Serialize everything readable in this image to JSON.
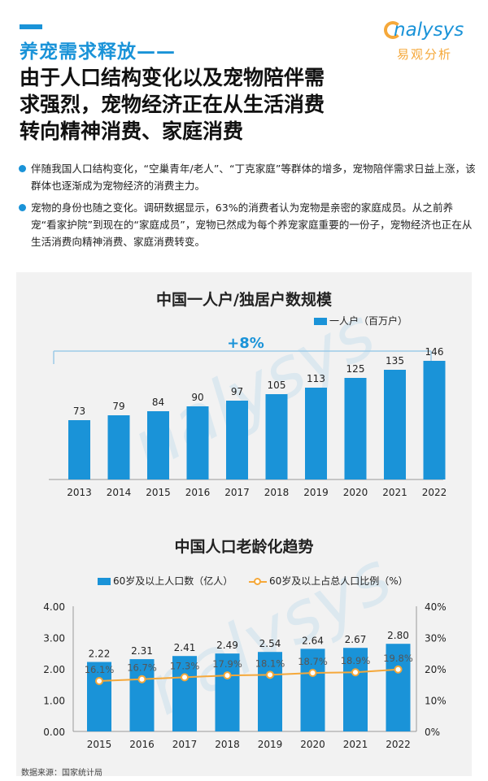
{
  "header": {
    "section_label": "养宠需求释放——",
    "headline_lines": [
      "由于人口结构变化以及宠物陪伴需",
      "求强烈，宠物经济正在从生活消费",
      "转向精神消费、家庭消费"
    ]
  },
  "logo": {
    "word": "nalysys",
    "cn": "易观分析",
    "brand_color": "#1a93d8",
    "accent_color": "#f5a83a"
  },
  "bullets": [
    "伴随我国人口结构变化，“空巢青年/老人”、“丁克家庭”等群体的增多，宠物陪伴需求日益上涨，该群体也逐渐成为宠物经济的消费主力。",
    "宠物的身份也随之变化。调研数据显示，63%的消费者认为宠物是亲密的家庭成员。从之前养宠“看家护院”到现在的“家庭成员”，宠物已然成为每个养宠家庭重要的一份子，宠物经济也正在从生活消费向精神消费、家庭消费转变。"
  ],
  "chart_data": [
    {
      "type": "bar",
      "title": "中国一人户/独居户数规模",
      "categories": [
        "2013",
        "2014",
        "2015",
        "2016",
        "2017",
        "2018",
        "2019",
        "2020",
        "2021",
        "2022"
      ],
      "series": [
        {
          "name": "一人户（百万户）",
          "values": [
            73,
            79,
            84,
            90,
            97,
            105,
            113,
            125,
            135,
            146
          ]
        }
      ],
      "annotation": "+8%",
      "legend_position": "top-right",
      "grid": false,
      "ylim": [
        0,
        160
      ]
    },
    {
      "type": "bar",
      "title": "中国人口老龄化趋势",
      "categories": [
        "2015",
        "2016",
        "2017",
        "2018",
        "2019",
        "2020",
        "2021",
        "2022"
      ],
      "series": [
        {
          "name": "60岁及以上人口数（亿人）",
          "type": "bar",
          "axis": "left",
          "values": [
            2.22,
            2.31,
            2.41,
            2.49,
            2.54,
            2.64,
            2.67,
            2.8
          ]
        },
        {
          "name": "60岁及以上占总人口比例（%）",
          "type": "line",
          "axis": "right",
          "values": [
            16.1,
            16.7,
            17.3,
            17.9,
            18.1,
            18.7,
            18.9,
            19.8
          ]
        }
      ],
      "y_left": {
        "ticks": [
          "0.00",
          "1.00",
          "2.00",
          "3.00",
          "4.00"
        ],
        "ylim": [
          0,
          4
        ]
      },
      "y_right": {
        "ticks": [
          "0%",
          "10%",
          "20%",
          "30%",
          "40%"
        ],
        "ylim": [
          0,
          40
        ]
      },
      "point_labels": [
        "16.1%",
        "16.7%",
        "17.3%",
        "17.9%",
        "18.1%",
        "18.7%",
        "18.9%",
        "19.8%"
      ],
      "bar_labels": [
        "2.22",
        "2.31",
        "2.41",
        "2.49",
        "2.54",
        "2.64",
        "2.67",
        "2.80"
      ],
      "legend_position": "top",
      "grid": false,
      "colors": {
        "bar": "#1a93d8",
        "line": "#f5a83a"
      }
    }
  ],
  "source": "数据来源：国家统计局"
}
